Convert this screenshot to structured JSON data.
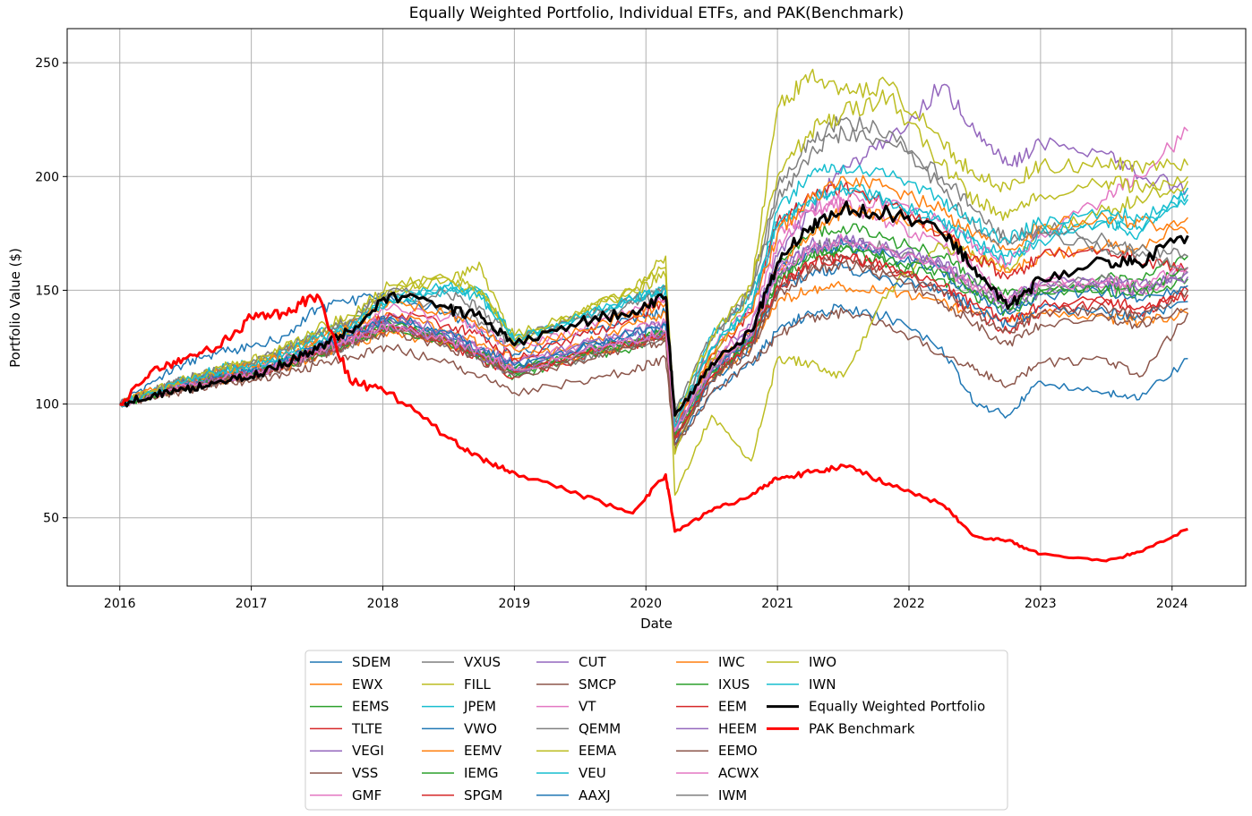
{
  "chart_data": {
    "type": "line",
    "title": "Equally Weighted Portfolio, Individual ETFs, and PAK(Benchmark)",
    "xlabel": "Date",
    "ylabel": "Portfolio Value ($)",
    "xlim": [
      2015.6,
      2024.56
    ],
    "ylim": [
      20,
      265
    ],
    "grid": true,
    "legend_position": "bottom-center",
    "x_ticks": [
      "2016",
      "2017",
      "2018",
      "2019",
      "2020",
      "2021",
      "2022",
      "2023",
      "2024"
    ],
    "y_ticks": [
      "50",
      "100",
      "150",
      "200",
      "250"
    ],
    "anchor_x": [
      2016.0,
      2016.25,
      2016.5,
      2016.75,
      2017.0,
      2017.25,
      2017.5,
      2017.75,
      2018.05,
      2018.5,
      2018.75,
      2019.0,
      2019.5,
      2019.9,
      2020.15,
      2020.22,
      2020.5,
      2020.8,
      2021.0,
      2021.25,
      2021.5,
      2021.85,
      2022.25,
      2022.5,
      2022.75,
      2023.0,
      2023.5,
      2023.75,
      2024.12
    ],
    "series": [
      {
        "name": "SDEM",
        "color": "#1f77b4",
        "width": 1.5,
        "values": [
          100,
          110,
          118,
          123,
          125,
          130,
          142,
          145,
          148,
          140,
          132,
          122,
          130,
          138,
          140,
          82,
          105,
          118,
          132,
          140,
          142,
          138,
          125,
          100,
          95,
          110,
          105,
          102,
          120
        ]
      },
      {
        "name": "EWX",
        "color": "#ff7f0e",
        "width": 1.5,
        "values": [
          100,
          106,
          110,
          114,
          117,
          122,
          128,
          133,
          140,
          132,
          126,
          120,
          126,
          135,
          140,
          88,
          110,
          125,
          145,
          150,
          152,
          150,
          145,
          140,
          138,
          140,
          138,
          136,
          140
        ]
      },
      {
        "name": "EEMS",
        "color": "#2ca02c",
        "width": 1.5,
        "values": [
          100,
          105,
          109,
          112,
          114,
          119,
          125,
          130,
          137,
          128,
          120,
          112,
          120,
          125,
          130,
          80,
          115,
          130,
          160,
          175,
          178,
          172,
          165,
          155,
          148,
          150,
          155,
          155,
          165
        ]
      },
      {
        "name": "TLTE",
        "color": "#d62728",
        "width": 1.5,
        "values": [
          100,
          104,
          108,
          111,
          113,
          117,
          123,
          128,
          134,
          126,
          120,
          112,
          120,
          126,
          130,
          85,
          112,
          128,
          150,
          162,
          165,
          160,
          150,
          140,
          132,
          140,
          145,
          140,
          150
        ]
      },
      {
        "name": "VEGI",
        "color": "#9467bd",
        "width": 1.5,
        "values": [
          100,
          105,
          109,
          112,
          114,
          118,
          124,
          129,
          136,
          128,
          120,
          114,
          122,
          128,
          132,
          92,
          120,
          135,
          165,
          185,
          205,
          215,
          240,
          220,
          205,
          215,
          210,
          200,
          195
        ]
      },
      {
        "name": "VSS",
        "color": "#8c564b",
        "width": 1.5,
        "values": [
          100,
          103,
          106,
          109,
          110,
          113,
          117,
          121,
          125,
          118,
          112,
          105,
          110,
          115,
          120,
          80,
          105,
          118,
          130,
          138,
          140,
          135,
          122,
          115,
          108,
          118,
          120,
          112,
          140
        ]
      },
      {
        "name": "GMF",
        "color": "#e377c2",
        "width": 1.5,
        "values": [
          100,
          105,
          109,
          113,
          115,
          120,
          126,
          131,
          139,
          131,
          124,
          118,
          126,
          132,
          136,
          90,
          118,
          135,
          170,
          185,
          188,
          180,
          170,
          160,
          145,
          155,
          152,
          148,
          160
        ]
      },
      {
        "name": "VXUS",
        "color": "#7f7f7f",
        "width": 1.5,
        "values": [
          100,
          104,
          107,
          110,
          112,
          116,
          121,
          126,
          133,
          126,
          120,
          113,
          120,
          125,
          128,
          88,
          115,
          128,
          155,
          168,
          172,
          168,
          160,
          152,
          145,
          152,
          155,
          150,
          158
        ]
      },
      {
        "name": "FILL",
        "color": "#bcbd22",
        "width": 1.5,
        "values": [
          100,
          104,
          107,
          112,
          114,
          119,
          125,
          130,
          150,
          155,
          160,
          125,
          140,
          150,
          165,
          60,
          95,
          75,
          120,
          118,
          112,
          150,
          170,
          165,
          160,
          175,
          185,
          190,
          198
        ]
      },
      {
        "name": "JPEM",
        "color": "#17becf",
        "width": 1.5,
        "values": [
          100,
          106,
          111,
          116,
          118,
          124,
          131,
          136,
          146,
          152,
          150,
          128,
          138,
          146,
          150,
          95,
          130,
          148,
          180,
          190,
          195,
          190,
          180,
          170,
          162,
          172,
          180,
          175,
          195
        ]
      },
      {
        "name": "VWO",
        "color": "#1f77b4",
        "width": 1.5,
        "values": [
          100,
          105,
          109,
          112,
          114,
          119,
          125,
          130,
          138,
          130,
          122,
          116,
          124,
          130,
          134,
          86,
          110,
          125,
          150,
          158,
          160,
          155,
          150,
          142,
          135,
          142,
          140,
          138,
          145
        ]
      },
      {
        "name": "EEMV",
        "color": "#ff7f0e",
        "width": 1.5,
        "values": [
          100,
          104,
          107,
          110,
          112,
          116,
          121,
          126,
          132,
          126,
          121,
          115,
          121,
          127,
          130,
          94,
          118,
          130,
          160,
          175,
          185,
          182,
          175,
          165,
          158,
          165,
          170,
          168,
          182
        ]
      },
      {
        "name": "IEMG",
        "color": "#2ca02c",
        "width": 1.5,
        "values": [
          100,
          105,
          108,
          112,
          114,
          118,
          124,
          129,
          136,
          128,
          122,
          115,
          123,
          128,
          132,
          85,
          112,
          128,
          155,
          165,
          168,
          162,
          155,
          148,
          140,
          148,
          150,
          148,
          155
        ]
      },
      {
        "name": "SPGM",
        "color": "#d62728",
        "width": 1.5,
        "values": [
          100,
          104,
          108,
          111,
          113,
          118,
          124,
          129,
          140,
          135,
          130,
          120,
          130,
          138,
          145,
          90,
          122,
          140,
          180,
          190,
          195,
          188,
          175,
          165,
          155,
          165,
          168,
          162,
          160
        ]
      },
      {
        "name": "CUT",
        "color": "#9467bd",
        "width": 1.5,
        "values": [
          100,
          105,
          109,
          112,
          114,
          119,
          125,
          130,
          138,
          132,
          125,
          118,
          126,
          132,
          136,
          88,
          116,
          132,
          160,
          170,
          172,
          168,
          160,
          150,
          142,
          150,
          152,
          150,
          158
        ]
      },
      {
        "name": "SMCP",
        "color": "#8c564b",
        "width": 1.5,
        "values": [
          100,
          104,
          107,
          110,
          112,
          116,
          122,
          127,
          134,
          127,
          121,
          114,
          121,
          126,
          130,
          84,
          112,
          126,
          150,
          160,
          164,
          158,
          150,
          140,
          132,
          140,
          142,
          138,
          150
        ]
      },
      {
        "name": "VT",
        "color": "#e377c2",
        "width": 1.5,
        "values": [
          100,
          104,
          108,
          112,
          114,
          119,
          125,
          130,
          142,
          138,
          133,
          124,
          133,
          141,
          147,
          92,
          125,
          142,
          175,
          185,
          190,
          188,
          180,
          170,
          162,
          175,
          190,
          200,
          220
        ]
      },
      {
        "name": "QEMM",
        "color": "#7f7f7f",
        "width": 1.5,
        "values": [
          100,
          106,
          111,
          115,
          118,
          124,
          131,
          137,
          148,
          142,
          136,
          126,
          136,
          144,
          150,
          96,
          130,
          150,
          190,
          210,
          220,
          215,
          200,
          185,
          172,
          178,
          172,
          168,
          165
        ]
      },
      {
        "name": "EEMA",
        "color": "#bcbd22",
        "width": 1.5,
        "values": [
          100,
          106,
          110,
          115,
          118,
          124,
          131,
          137,
          150,
          155,
          150,
          128,
          140,
          150,
          160,
          78,
          120,
          150,
          230,
          245,
          238,
          240,
          215,
          200,
          195,
          205,
          205,
          205,
          205
        ]
      },
      {
        "name": "VEU",
        "color": "#17becf",
        "width": 1.5,
        "values": [
          100,
          105,
          109,
          113,
          115,
          120,
          127,
          133,
          145,
          150,
          148,
          130,
          138,
          146,
          150,
          92,
          125,
          142,
          178,
          190,
          195,
          190,
          180,
          172,
          165,
          175,
          180,
          178,
          190
        ]
      },
      {
        "name": "AAXJ",
        "color": "#1f77b4",
        "width": 1.5,
        "values": [
          100,
          105,
          109,
          112,
          114,
          119,
          125,
          130,
          138,
          131,
          124,
          117,
          125,
          131,
          135,
          87,
          114,
          130,
          158,
          167,
          170,
          165,
          158,
          148,
          140,
          148,
          150,
          146,
          152
        ]
      },
      {
        "name": "IWC",
        "color": "#ff7f0e",
        "width": 1.5,
        "values": [
          100,
          106,
          110,
          114,
          117,
          122,
          129,
          134,
          145,
          140,
          134,
          124,
          132,
          140,
          144,
          90,
          122,
          140,
          175,
          190,
          200,
          195,
          185,
          175,
          168,
          178,
          182,
          180,
          175
        ]
      },
      {
        "name": "IXUS",
        "color": "#2ca02c",
        "width": 1.5,
        "values": [
          100,
          104,
          108,
          111,
          113,
          117,
          122,
          127,
          134,
          127,
          121,
          114,
          122,
          127,
          131,
          86,
          114,
          128,
          155,
          165,
          168,
          164,
          158,
          150,
          143,
          150,
          152,
          150,
          160
        ]
      },
      {
        "name": "EEM",
        "color": "#d62728",
        "width": 1.5,
        "values": [
          100,
          104,
          108,
          111,
          113,
          117,
          123,
          128,
          135,
          127,
          121,
          114,
          122,
          127,
          131,
          85,
          112,
          127,
          152,
          162,
          165,
          160,
          152,
          144,
          136,
          143,
          146,
          142,
          148
        ]
      },
      {
        "name": "HEEM",
        "color": "#9467bd",
        "width": 1.5,
        "values": [
          100,
          104,
          108,
          111,
          113,
          117,
          123,
          128,
          135,
          128,
          122,
          115,
          123,
          128,
          132,
          88,
          115,
          130,
          158,
          168,
          172,
          168,
          162,
          154,
          146,
          153,
          155,
          152,
          156
        ]
      },
      {
        "name": "EEMO",
        "color": "#8c564b",
        "width": 1.5,
        "values": [
          100,
          104,
          107,
          110,
          112,
          116,
          121,
          126,
          132,
          125,
          119,
          112,
          119,
          124,
          128,
          82,
          110,
          124,
          148,
          158,
          162,
          156,
          145,
          135,
          126,
          135,
          138,
          134,
          142
        ]
      },
      {
        "name": "ACWX",
        "color": "#e377c2",
        "width": 1.5,
        "values": [
          100,
          104,
          108,
          111,
          113,
          117,
          123,
          128,
          135,
          128,
          122,
          115,
          123,
          128,
          132,
          88,
          116,
          130,
          158,
          168,
          172,
          168,
          160,
          152,
          145,
          152,
          154,
          152,
          160
        ]
      },
      {
        "name": "IWM",
        "color": "#7f7f7f",
        "width": 1.5,
        "values": [
          100,
          106,
          111,
          115,
          118,
          124,
          131,
          137,
          150,
          148,
          142,
          128,
          138,
          146,
          152,
          92,
          128,
          150,
          195,
          215,
          225,
          220,
          195,
          178,
          170,
          175,
          168,
          165,
          160
        ]
      },
      {
        "name": "IWO",
        "color": "#bcbd22",
        "width": 1.5,
        "values": [
          100,
          106,
          111,
          116,
          119,
          125,
          133,
          139,
          152,
          155,
          148,
          130,
          140,
          150,
          156,
          94,
          130,
          152,
          200,
          220,
          228,
          235,
          205,
          190,
          182,
          192,
          198,
          195,
          200
        ]
      },
      {
        "name": "IWN",
        "color": "#17becf",
        "width": 1.5,
        "values": [
          100,
          105,
          110,
          114,
          117,
          122,
          129,
          134,
          146,
          150,
          146,
          128,
          138,
          146,
          150,
          90,
          124,
          144,
          185,
          200,
          205,
          200,
          190,
          180,
          172,
          180,
          185,
          182,
          192
        ]
      },
      {
        "name": "Equally Weighted Portfolio",
        "color": "#000000",
        "width": 3,
        "values": [
          100,
          104,
          106,
          110,
          112,
          118,
          124,
          132,
          148,
          142,
          138,
          126,
          136,
          141,
          147,
          95,
          118,
          132,
          162,
          178,
          186,
          184,
          175,
          160,
          142,
          155,
          163,
          162,
          174
        ]
      },
      {
        "name": "PAK Benchmark",
        "color": "#ff0000",
        "width": 3,
        "values": [
          100,
          115,
          120,
          125,
          138,
          140,
          148,
          110,
          105,
          85,
          76,
          70,
          60,
          52,
          69,
          44,
          53,
          60,
          67,
          70,
          73,
          65,
          56,
          42,
          40,
          34,
          31,
          35,
          45
        ]
      }
    ]
  }
}
